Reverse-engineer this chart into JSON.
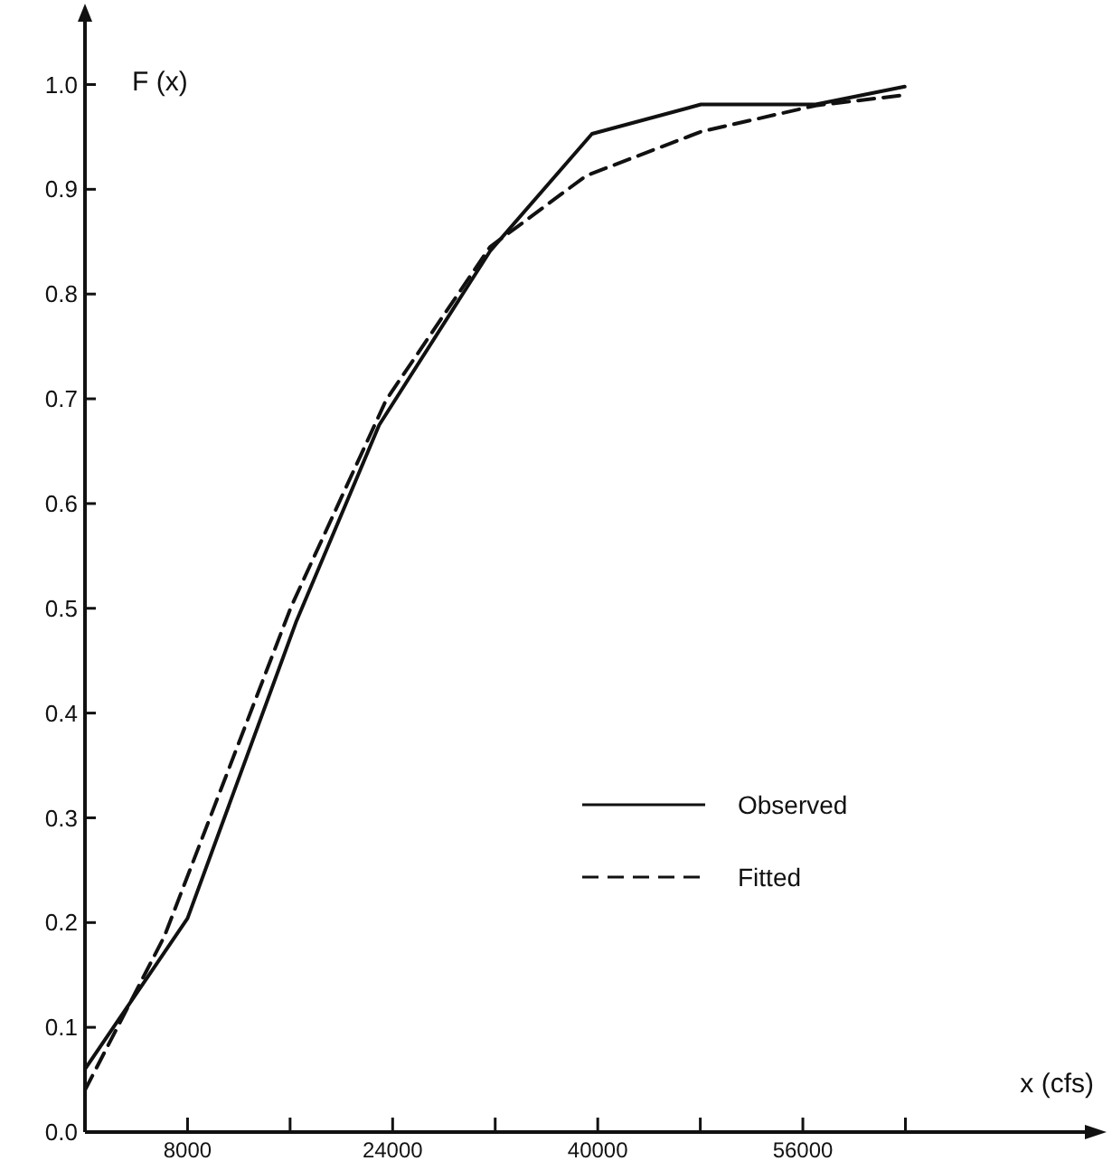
{
  "chart_data": {
    "type": "line",
    "xlabel": "x (cfs)",
    "ylabel": "F (x)",
    "xlim": [
      0,
      78000
    ],
    "ylim": [
      0,
      1.06
    ],
    "xticks": [
      {
        "value": 0,
        "label": null
      },
      8000,
      {
        "value": 16000,
        "label": null
      },
      24000,
      {
        "value": 32000,
        "label": null
      },
      40000,
      {
        "value": 48000,
        "label": null
      },
      56000,
      {
        "value": 64000,
        "label": null
      }
    ],
    "yticks": [
      {
        "value": 0,
        "label": "0.0"
      },
      {
        "value": 0.1,
        "label": "0.1"
      },
      {
        "value": 0.2,
        "label": "0.2"
      },
      {
        "value": 0.3,
        "label": "0.3"
      },
      {
        "value": 0.4,
        "label": "0.4"
      },
      {
        "value": 0.5,
        "label": "0.5"
      },
      {
        "value": 0.6,
        "label": "0.6"
      },
      {
        "value": 0.7,
        "label": "0.7"
      },
      {
        "value": 0.8,
        "label": "0.8"
      },
      {
        "value": 0.9,
        "label": "0.9"
      },
      {
        "value": 1,
        "label": "1.0"
      }
    ],
    "grid": false,
    "legend": "right",
    "marker": "none",
    "series": [
      {
        "name": "Observed",
        "color": "#111111",
        "line_style": "solid",
        "x": [
          0,
          8000,
          16500,
          22950,
          31600,
          39550,
          48050,
          57000,
          63950
        ],
        "values": [
          0.06,
          0.204,
          0.488,
          0.675,
          0.841,
          0.953,
          0.981,
          0.981,
          0.998
        ]
      },
      {
        "name": "Fitted",
        "color": "#111111",
        "line_style": "dashed",
        "x": [
          0,
          6200,
          16100,
          23500,
          31600,
          39100,
          48050,
          57000,
          63950
        ],
        "values": [
          0.04,
          0.187,
          0.502,
          0.699,
          0.845,
          0.913,
          0.955,
          0.98,
          0.99
        ]
      }
    ]
  }
}
